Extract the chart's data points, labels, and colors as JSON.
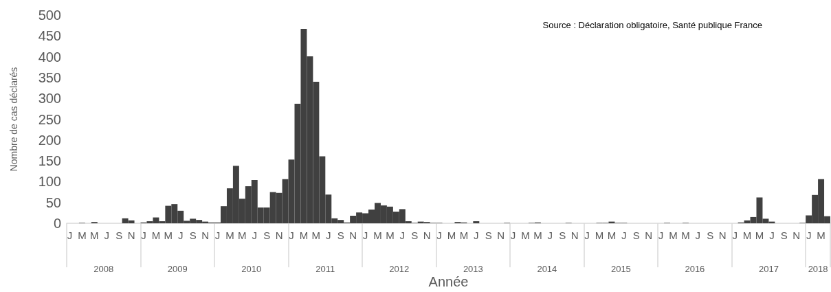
{
  "chart_data": {
    "type": "bar",
    "ylabel": "Nombre de cas déclarés",
    "xlabel": "Année",
    "annotations": [
      "Source : Déclaration obligatoire, Santé publique France",
      "2008",
      "2009",
      "2010",
      "2011",
      "2012",
      "2013",
      "2014",
      "2015",
      "2016",
      "2017",
      "2018"
    ],
    "categories": [
      "J",
      null,
      "M",
      null,
      "M",
      null,
      "J",
      null,
      "S",
      null,
      "N",
      null,
      "J",
      null,
      "M",
      null,
      "M",
      null,
      "J",
      null,
      "S",
      null,
      "N",
      null,
      "J",
      null,
      "M",
      null,
      "M",
      null,
      "J",
      null,
      "S",
      null,
      "N",
      null,
      "J",
      null,
      "M",
      null,
      "M",
      null,
      "J",
      null,
      "S",
      null,
      "N",
      null,
      "J",
      null,
      "M",
      null,
      "M",
      null,
      "J",
      null,
      "S",
      null,
      "N",
      null,
      "J",
      null,
      "M",
      null,
      "M",
      null,
      "J",
      null,
      "S",
      null,
      "N",
      null,
      "J",
      null,
      "M",
      null,
      "M",
      null,
      "J",
      null,
      "S",
      null,
      "N",
      null,
      "J",
      null,
      "M",
      null,
      "M",
      null,
      "J",
      null,
      "S",
      null,
      "N",
      null,
      "J",
      null,
      "M",
      null,
      "M",
      null,
      "J",
      null,
      "S",
      null,
      "N",
      null,
      "J",
      null,
      "M",
      null,
      "M",
      null,
      "J",
      null,
      "S",
      null,
      "N",
      null,
      "J",
      null,
      "M",
      null
    ],
    "values": [
      0,
      0,
      1,
      0,
      3,
      0,
      0,
      0,
      0,
      12,
      7,
      0,
      2,
      5,
      14,
      5,
      42,
      46,
      30,
      6,
      11,
      8,
      4,
      2,
      2,
      41,
      84,
      138,
      59,
      89,
      104,
      38,
      38,
      75,
      73,
      106,
      153,
      287,
      467,
      401,
      340,
      161,
      69,
      12,
      8,
      2,
      18,
      26,
      24,
      33,
      49,
      43,
      40,
      28,
      34,
      5,
      1,
      4,
      3,
      1,
      1,
      0,
      0,
      3,
      2,
      0,
      5,
      0,
      0,
      0,
      0,
      1,
      0,
      0,
      0,
      1,
      2,
      0,
      0,
      0,
      0,
      1,
      0,
      0,
      0,
      0,
      1,
      1,
      4,
      1,
      1,
      0,
      0,
      0,
      0,
      0,
      0,
      1,
      0,
      0,
      1,
      0,
      0,
      0,
      0,
      0,
      0,
      0,
      0,
      2,
      7,
      15,
      62,
      11,
      4,
      0,
      0,
      0,
      0,
      1,
      19,
      68,
      106,
      17
    ],
    "color": "#404040",
    "ylim": [
      0,
      500
    ],
    "yticks": [
      0,
      50,
      100,
      150,
      200,
      250,
      300,
      350,
      400,
      450,
      500
    ],
    "grid": false
  }
}
